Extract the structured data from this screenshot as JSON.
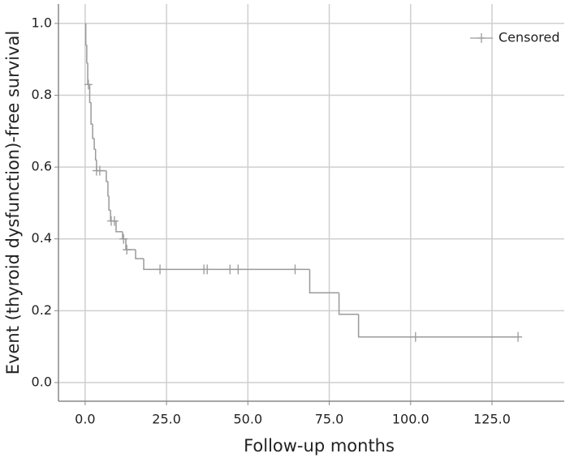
{
  "chart_data": {
    "type": "survival",
    "xlabel": "Follow-up months",
    "ylabel": "Event (thyroid dysfunction)-free survival",
    "xlim": [
      -8.2,
      147.2
    ],
    "ylim": [
      -0.052,
      1.054
    ],
    "xticks": [
      {
        "value": 0,
        "label": "0.0"
      },
      {
        "value": 25,
        "label": "25.0"
      },
      {
        "value": 50,
        "label": "50.0"
      },
      {
        "value": 75,
        "label": "75.0"
      },
      {
        "value": 100,
        "label": "100.0"
      },
      {
        "value": 125,
        "label": "125.0"
      }
    ],
    "yticks": [
      {
        "value": 0,
        "label": "0.0"
      },
      {
        "value": 0.2,
        "label": "0.2"
      },
      {
        "value": 0.4,
        "label": "0.4"
      },
      {
        "value": 0.6,
        "label": "0.6"
      },
      {
        "value": 0.8,
        "label": "0.8"
      },
      {
        "value": 1,
        "label": "1.0"
      }
    ],
    "grid": true,
    "legend": "top-right",
    "series": [
      {
        "kind": "step",
        "color": "#9a9a9a",
        "x": [
          0,
          0.2,
          0.5,
          0.8,
          1.4,
          1.8,
          2.3,
          2.8,
          3.2,
          3.5,
          6.5,
          7.0,
          7.3,
          7.8,
          9.5,
          11.5,
          12.5,
          15.5,
          18,
          69,
          78,
          84,
          133
        ],
        "values": [
          1,
          0.94,
          0.89,
          0.83,
          0.78,
          0.72,
          0.68,
          0.65,
          0.62,
          0.59,
          0.56,
          0.52,
          0.48,
          0.45,
          0.42,
          0.4,
          0.37,
          0.345,
          0.315,
          0.25,
          0.19,
          0.127,
          0.127
        ]
      },
      {
        "kind": "censor",
        "name": "Censored",
        "color": "#9a9a9a",
        "x": [
          1,
          3.5,
          4.5,
          8,
          9,
          11.8,
          12.8,
          23,
          36.5,
          37.5,
          44.5,
          47,
          64.5,
          101.5,
          133
        ],
        "values": [
          0.83,
          0.59,
          0.59,
          0.45,
          0.45,
          0.4,
          0.37,
          0.315,
          0.315,
          0.315,
          0.315,
          0.315,
          0.315,
          0.127,
          0.127
        ]
      }
    ]
  }
}
